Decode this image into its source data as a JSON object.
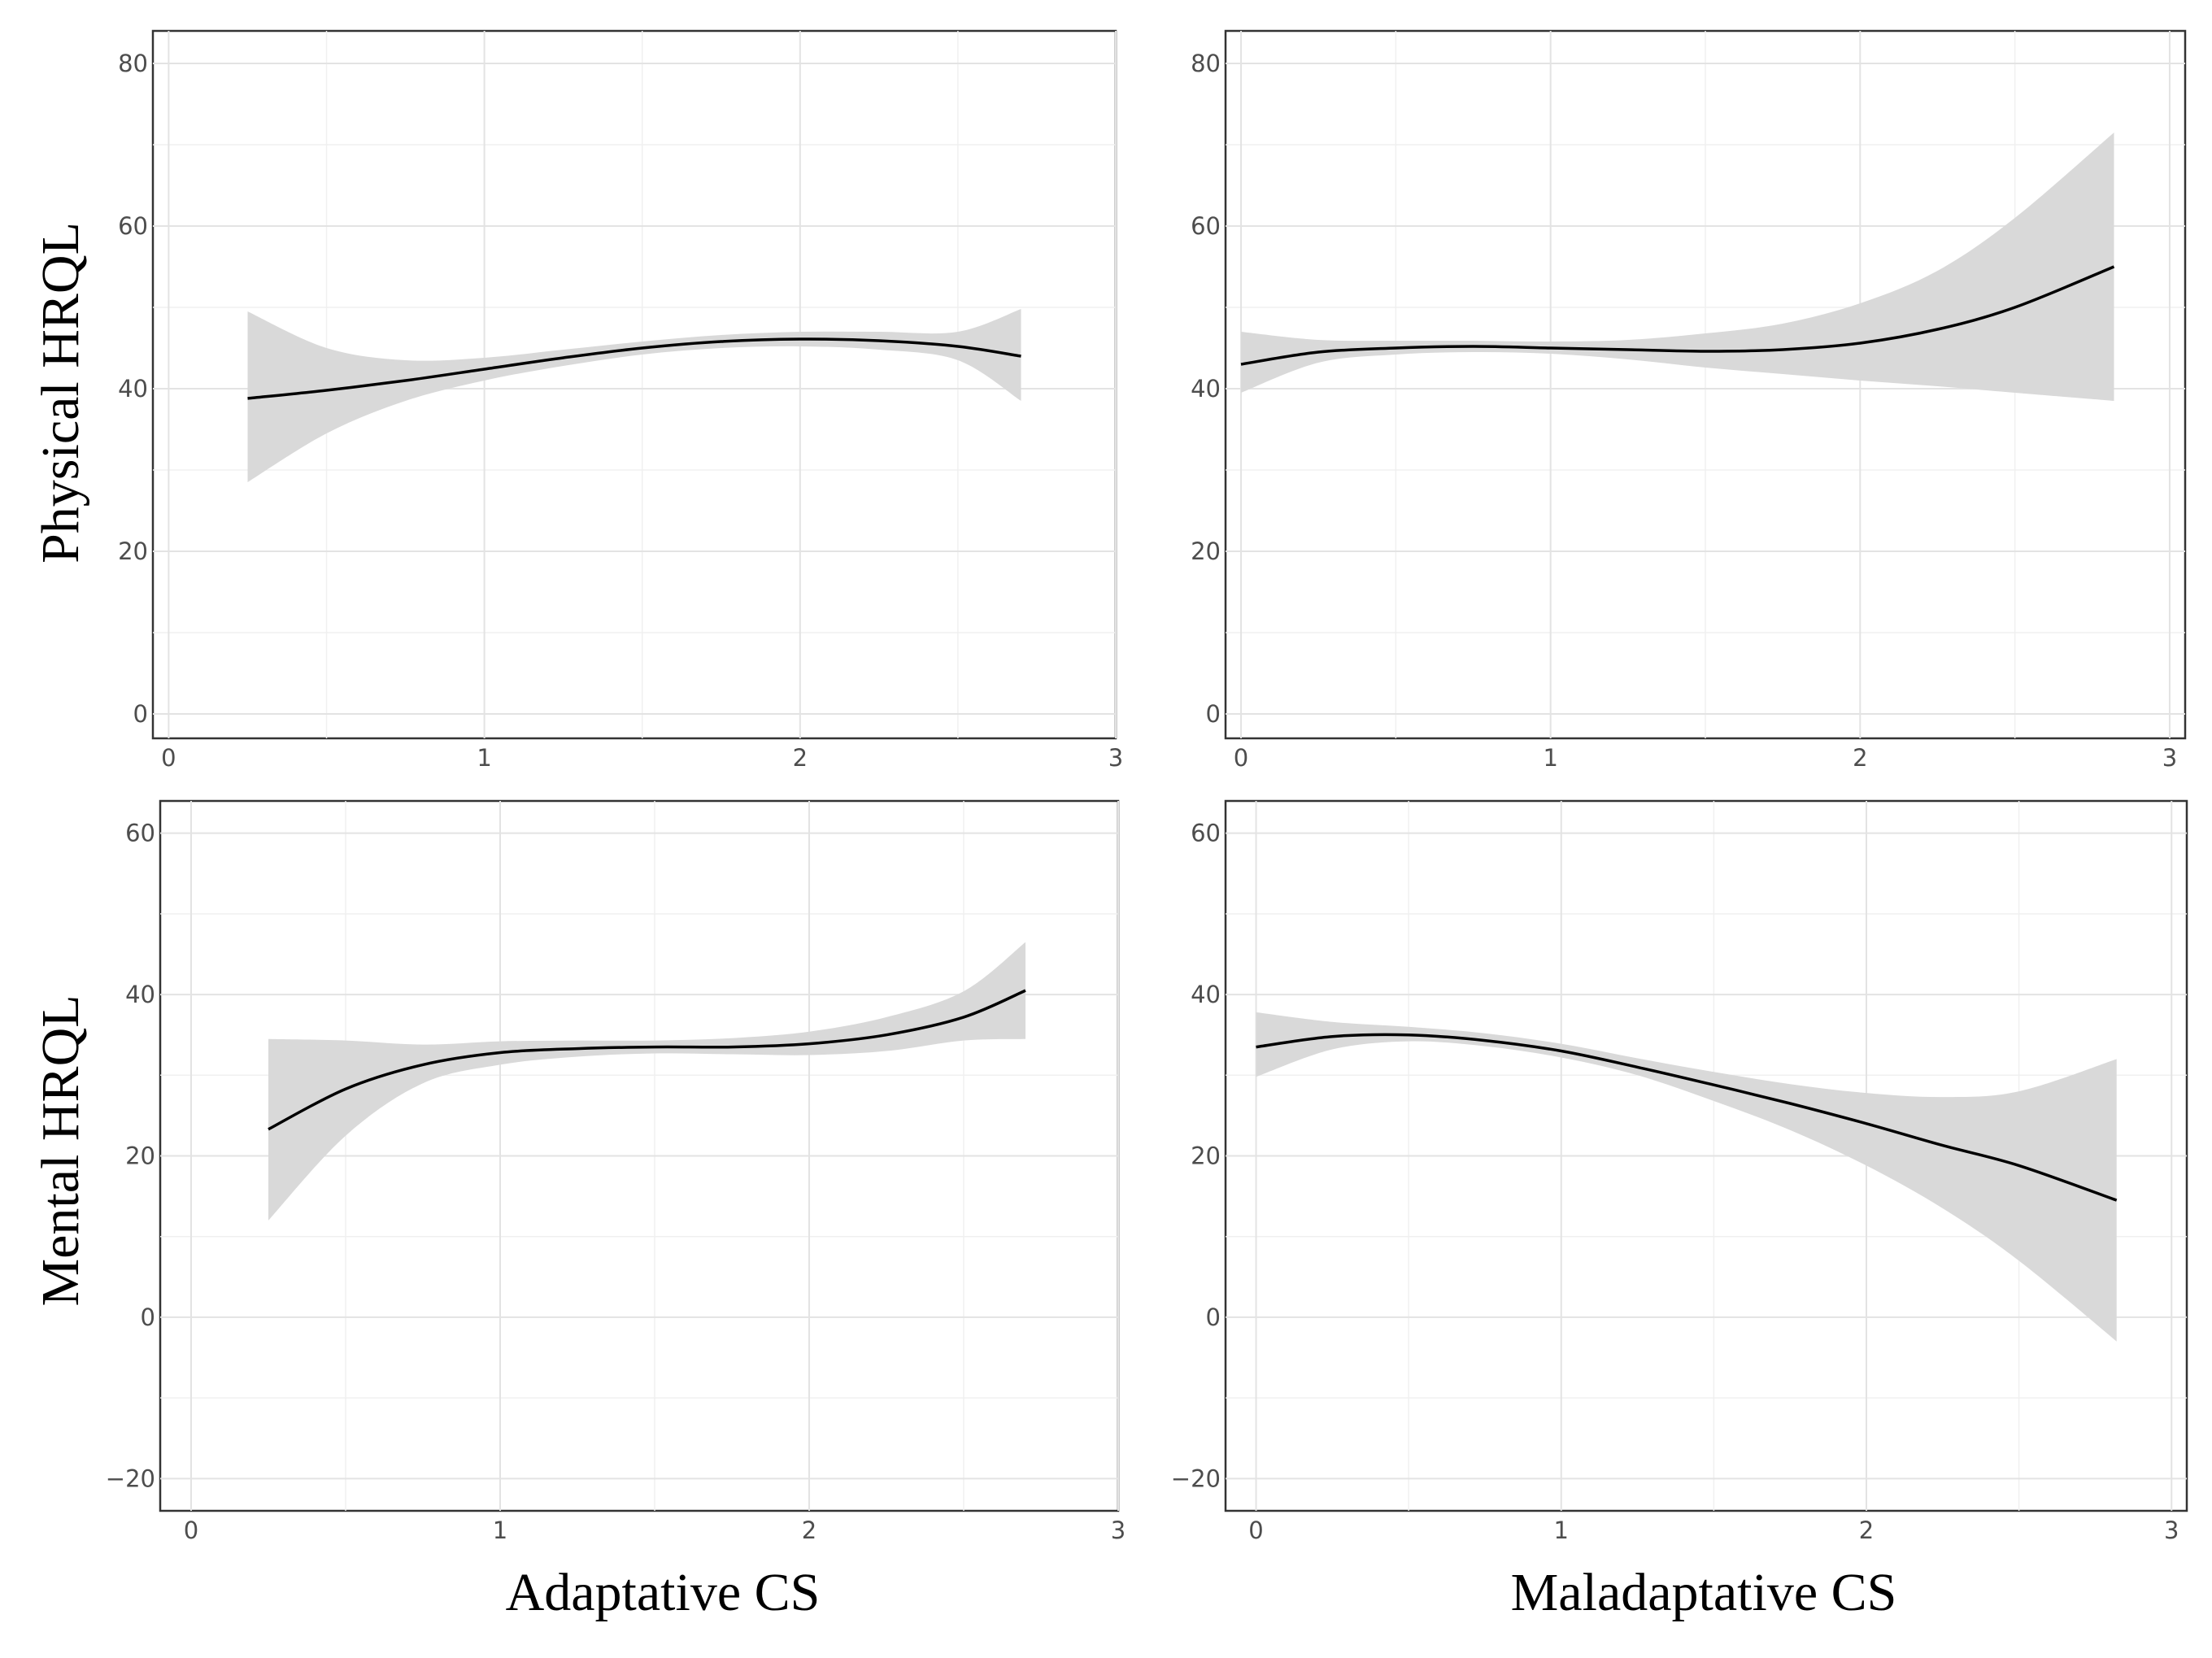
{
  "figure": {
    "row_labels": [
      "Physical HRQL",
      "Mental HRQL"
    ],
    "column_labels": [
      "Adaptative CS",
      "Maladaptative CS"
    ]
  },
  "chart_data": [
    {
      "type": "line",
      "id": "physical-adaptive",
      "xlabel": "Adaptative CS",
      "ylabel": "Physical HRQL",
      "xlim": [
        -0.05,
        3.0
      ],
      "ylim": [
        -3,
        84
      ],
      "xticks": [
        0,
        1,
        2,
        3
      ],
      "yticks": [
        0,
        20,
        40,
        60,
        80
      ],
      "grid": true,
      "series": [
        {
          "name": "fit",
          "x": [
            0.25,
            0.5,
            0.75,
            1.0,
            1.25,
            1.5,
            1.75,
            2.0,
            2.25,
            2.5,
            2.7
          ],
          "y": [
            38.8,
            39.8,
            41.0,
            42.4,
            43.8,
            45.0,
            45.8,
            46.1,
            45.9,
            45.2,
            44.0
          ],
          "lower": [
            28.5,
            34.5,
            38.5,
            41.0,
            42.8,
            44.2,
            45.0,
            45.2,
            44.8,
            43.5,
            38.5
          ],
          "upper": [
            49.5,
            45.0,
            43.5,
            43.8,
            44.8,
            45.8,
            46.6,
            47.0,
            47.0,
            47.0,
            49.8
          ]
        }
      ]
    },
    {
      "type": "line",
      "id": "physical-maladaptive",
      "xlabel": "Maladaptative CS",
      "ylabel": "",
      "xlim": [
        -0.05,
        3.05
      ],
      "ylim": [
        -3,
        84
      ],
      "xticks": [
        0,
        1,
        2,
        3
      ],
      "yticks": [
        0,
        20,
        40,
        60,
        80
      ],
      "grid": true,
      "series": [
        {
          "name": "fit",
          "x": [
            0.0,
            0.25,
            0.5,
            0.75,
            1.0,
            1.25,
            1.5,
            1.75,
            2.0,
            2.25,
            2.5,
            2.82
          ],
          "y": [
            43.0,
            44.5,
            45.0,
            45.2,
            45.0,
            44.8,
            44.6,
            44.8,
            45.6,
            47.3,
            50.0,
            55.0
          ],
          "lower": [
            39.5,
            43.2,
            44.2,
            44.5,
            44.3,
            43.6,
            42.6,
            41.8,
            41.0,
            40.3,
            39.5,
            38.5
          ],
          "upper": [
            47.0,
            46.0,
            45.9,
            45.9,
            45.8,
            46.0,
            46.8,
            48.0,
            50.5,
            54.5,
            61.0,
            71.5
          ]
        }
      ]
    },
    {
      "type": "line",
      "id": "mental-adaptive",
      "xlabel": "Adaptative CS",
      "ylabel": "Mental HRQL",
      "xlim": [
        -0.1,
        3.0
      ],
      "ylim": [
        -24,
        64
      ],
      "xticks": [
        0,
        1,
        2,
        3
      ],
      "yticks": [
        -20,
        0,
        20,
        40,
        60
      ],
      "grid": true,
      "series": [
        {
          "name": "fit",
          "x": [
            0.25,
            0.5,
            0.75,
            1.0,
            1.25,
            1.5,
            1.75,
            2.0,
            2.25,
            2.5,
            2.7
          ],
          "y": [
            23.3,
            28.3,
            31.3,
            32.8,
            33.3,
            33.5,
            33.5,
            33.9,
            35.0,
            37.2,
            40.5
          ],
          "lower": [
            12.0,
            22.5,
            29.0,
            31.3,
            32.3,
            32.7,
            32.6,
            32.5,
            33.0,
            34.3,
            34.5
          ],
          "upper": [
            34.5,
            34.3,
            33.8,
            34.2,
            34.3,
            34.3,
            34.6,
            35.4,
            37.2,
            40.4,
            46.5
          ]
        }
      ]
    },
    {
      "type": "line",
      "id": "mental-maladaptive",
      "xlabel": "Maladaptative CS",
      "ylabel": "",
      "xlim": [
        -0.1,
        3.05
      ],
      "ylim": [
        -24,
        64
      ],
      "xticks": [
        0,
        1,
        2,
        3
      ],
      "yticks": [
        -20,
        0,
        20,
        40,
        60
      ],
      "grid": true,
      "series": [
        {
          "name": "fit",
          "x": [
            0.0,
            0.25,
            0.5,
            0.75,
            1.0,
            1.25,
            1.5,
            1.75,
            2.0,
            2.25,
            2.5,
            2.82
          ],
          "y": [
            33.5,
            34.8,
            35.0,
            34.3,
            33.0,
            31.0,
            28.8,
            26.5,
            24.0,
            21.3,
            18.8,
            14.5
          ],
          "lower": [
            29.8,
            33.2,
            34.2,
            33.6,
            32.2,
            30.0,
            26.8,
            23.2,
            18.8,
            13.5,
            7.0,
            -3.0
          ],
          "upper": [
            37.8,
            36.6,
            36.0,
            35.2,
            33.9,
            32.1,
            30.4,
            28.9,
            27.8,
            27.3,
            28.0,
            32.0
          ]
        }
      ]
    }
  ]
}
